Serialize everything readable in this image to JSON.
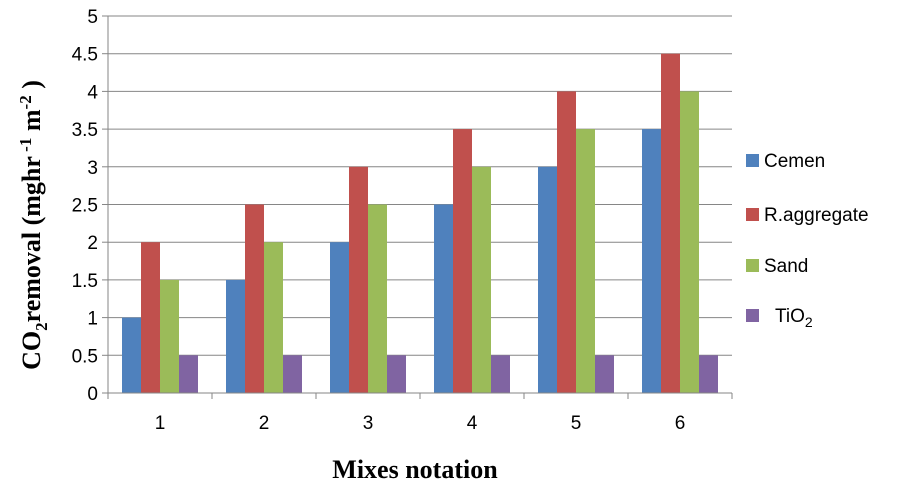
{
  "chart_data": {
    "type": "bar",
    "categories": [
      "1",
      "2",
      "3",
      "4",
      "5",
      "6"
    ],
    "series": [
      {
        "name": "Cemen",
        "values": [
          1,
          1.5,
          2,
          2.5,
          3,
          3.5
        ],
        "color": "#4f81bd"
      },
      {
        "name": "R.aggregate",
        "values": [
          2,
          2.5,
          3,
          3.5,
          4,
          4.5
        ],
        "color": "#c0504d"
      },
      {
        "name": "Sand",
        "values": [
          1.5,
          2,
          2.5,
          3,
          3.5,
          4
        ],
        "color": "#9bbb59"
      },
      {
        "name": "TiO2",
        "values": [
          0.5,
          0.5,
          0.5,
          0.5,
          0.5,
          0.5
        ],
        "color": "#8064a2"
      }
    ],
    "xlabel": "Mixes notation",
    "ylabel": "CO2removal (mghr -1 m-2 )",
    "ylim": [
      0,
      5
    ],
    "yticks": [
      "0",
      "0.5",
      "1",
      "1.5",
      "2",
      "2.5",
      "3",
      "3.5",
      "4",
      "4.5",
      "5"
    ],
    "grid": true,
    "legend_position": "right"
  }
}
